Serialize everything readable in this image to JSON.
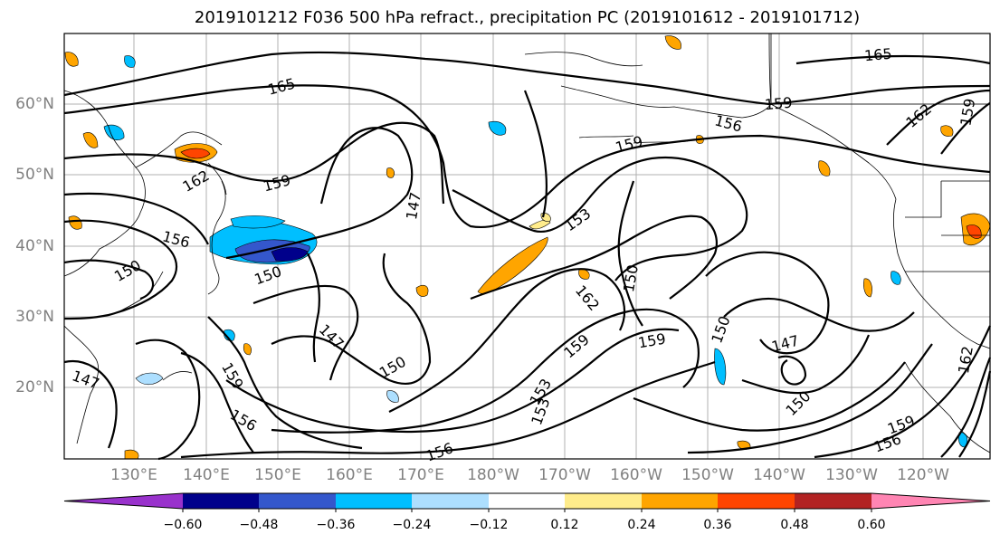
{
  "title": "2019101212 F036 500 hPa refract., precipitation PC (2019101612 - 2019101712)",
  "lat_labels": [
    "60°N",
    "50°N",
    "40°N",
    "30°N",
    "20°N"
  ],
  "lon_labels": [
    "130°E",
    "140°E",
    "150°E",
    "160°E",
    "170°E",
    "180°W",
    "170°W",
    "160°W",
    "150°W",
    "140°W",
    "130°W",
    "120°W"
  ],
  "contour_labels": [
    "165",
    "162",
    "159",
    "156",
    "153",
    "150",
    "147",
    "165",
    "159",
    "156",
    "159",
    "162",
    "159",
    "153",
    "150",
    "147",
    "150",
    "159",
    "150",
    "147",
    "150",
    "162",
    "159",
    "156",
    "159",
    "153",
    "156",
    "147",
    "150",
    "159",
    "156",
    "162"
  ],
  "colorbar": {
    "ticks": [
      "−0.60",
      "−0.48",
      "−0.36",
      "−0.24",
      "−0.12",
      "0.12",
      "0.24",
      "0.36",
      "0.48",
      "0.60"
    ],
    "colors": [
      "#9932CC",
      "#00008B",
      "#3457CC",
      "#00BFFF",
      "#ADDFFF",
      "#FFFFFF",
      "#FFEC8B",
      "#FFA500",
      "#FF4500",
      "#B22222",
      "#FF85B3"
    ]
  }
}
